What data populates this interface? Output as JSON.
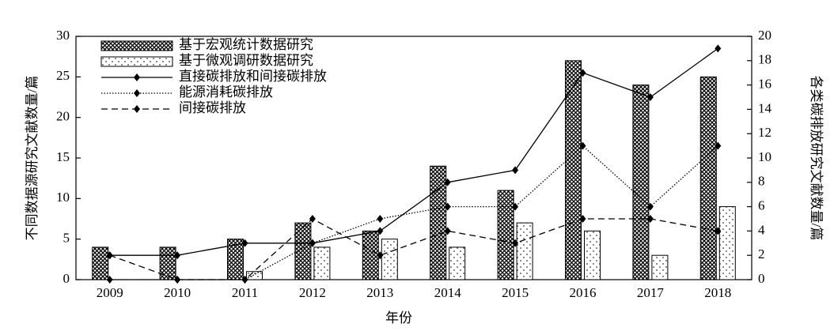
{
  "chart_data": {
    "type": "bar-line",
    "x_label": "年份",
    "y_label": "不同数据源研究文献数量/篇",
    "y2_label": "各类碳排放研究文献数量/篇",
    "categories": [
      "2009",
      "2010",
      "2011",
      "2012",
      "2013",
      "2014",
      "2015",
      "2016",
      "2017",
      "2018"
    ],
    "ylim": [
      0,
      30
    ],
    "yticks": [
      0,
      5,
      10,
      15,
      20,
      25,
      30
    ],
    "y2lim": [
      0,
      20
    ],
    "y2ticks": [
      0,
      2,
      4,
      6,
      8,
      10,
      12,
      14,
      16,
      18,
      20
    ],
    "legend": "upper left",
    "series": [
      {
        "name": "基于宏观统计数据研究",
        "type": "bar",
        "color": "#000000",
        "values": [
          4,
          4,
          5,
          7,
          6,
          14,
          11,
          27,
          24,
          25
        ]
      },
      {
        "name": "基于微观调研数据研究",
        "type": "bar",
        "color": "#000000",
        "values": [
          0,
          0,
          1,
          4,
          5,
          4,
          7,
          6,
          3,
          9
        ]
      },
      {
        "name": "直接碳排放和间接碳排放",
        "type": "line",
        "line_style": "solid",
        "axis": "y2",
        "color": "#000000",
        "values": [
          2,
          2,
          3,
          3,
          4,
          8,
          9,
          17,
          15,
          19
        ]
      },
      {
        "name": "能源消耗碳排放",
        "type": "line",
        "line_style": "dotted",
        "axis": "y2",
        "color": "#000000",
        "values": [
          0,
          0,
          0,
          3,
          5,
          6,
          6,
          11,
          6,
          11
        ]
      },
      {
        "name": "间接碳排放",
        "type": "line",
        "line_style": "dashed",
        "axis": "y2",
        "color": "#000000",
        "values": [
          2,
          0,
          0,
          5,
          2,
          4,
          3,
          5,
          5,
          4
        ]
      }
    ]
  }
}
